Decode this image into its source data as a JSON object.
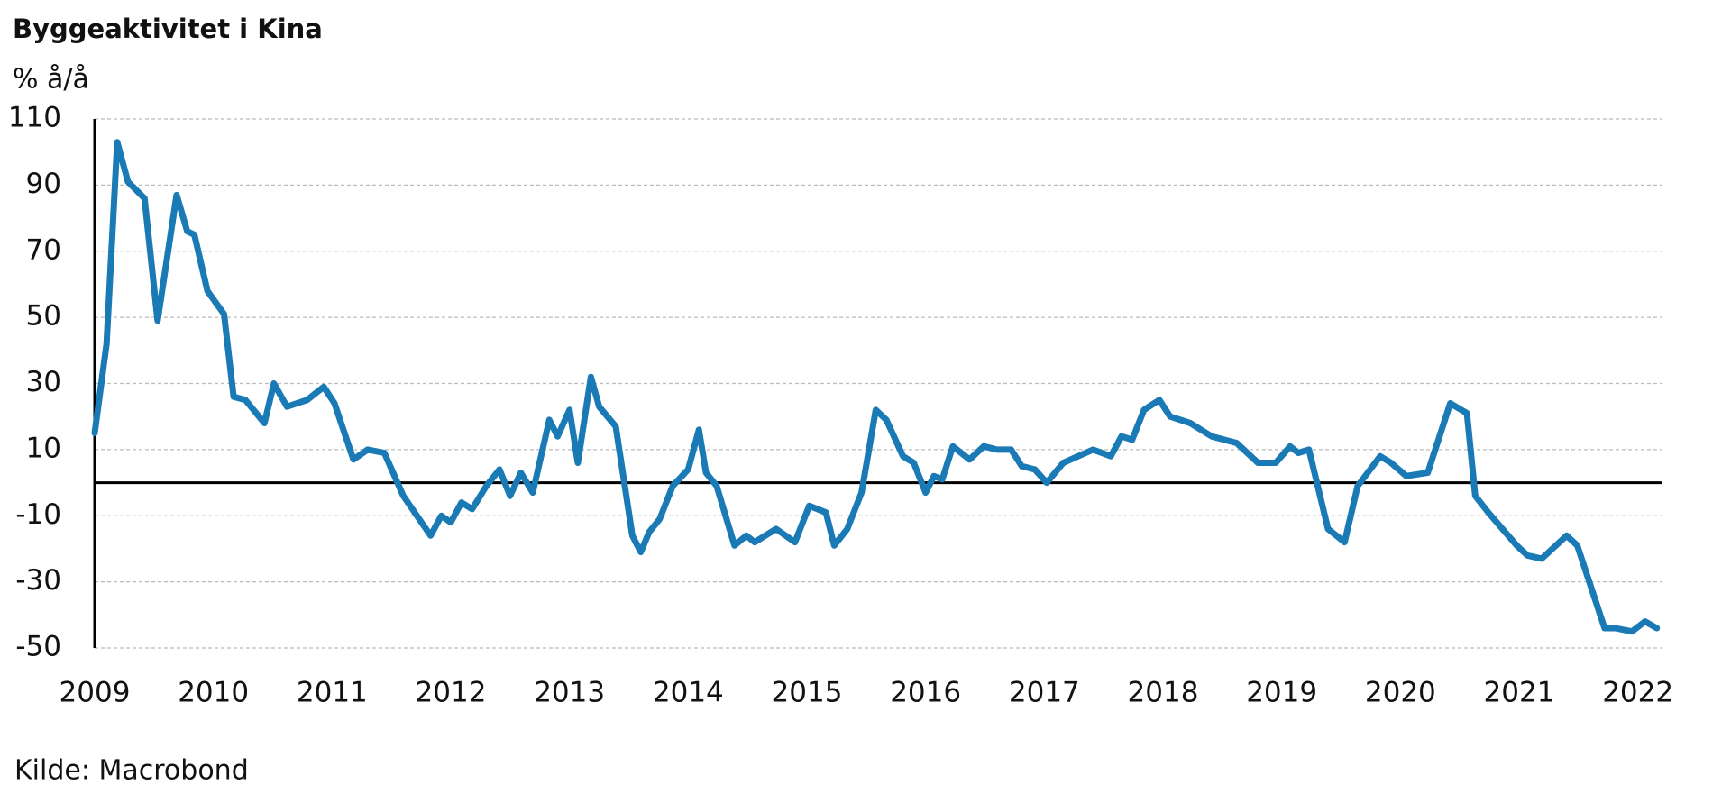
{
  "chart_data": {
    "type": "line",
    "title": "Byggeaktivitet i Kina",
    "y_label": "% å/å",
    "source": "Kilde: Macrobond",
    "color": "#1a7ab5",
    "grid": true,
    "xlim": [
      2009,
      2022.2
    ],
    "xticks": [
      2009,
      2010,
      2011,
      2012,
      2013,
      2014,
      2015,
      2016,
      2017,
      2018,
      2019,
      2020,
      2021,
      2022
    ],
    "ylim": [
      -50,
      110
    ],
    "yticks": [
      -50,
      -30,
      -10,
      10,
      30,
      50,
      70,
      90,
      110
    ],
    "x": [
      2009.0,
      2009.1,
      2009.19,
      2009.28,
      2009.42,
      2009.53,
      2009.69,
      2009.78,
      2009.84,
      2009.95,
      2010.09,
      2010.17,
      2010.27,
      2010.43,
      2010.51,
      2010.62,
      2010.79,
      2010.93,
      2011.02,
      2011.18,
      2011.3,
      2011.44,
      2011.6,
      2011.83,
      2011.92,
      2012.0,
      2012.09,
      2012.18,
      2012.3,
      2012.41,
      2012.5,
      2012.59,
      2012.69,
      2012.83,
      2012.9,
      2013.0,
      2013.07,
      2013.18,
      2013.25,
      2013.39,
      2013.53,
      2013.6,
      2013.67,
      2013.76,
      2013.87,
      2014.0,
      2014.09,
      2014.15,
      2014.24,
      2014.39,
      2014.49,
      2014.56,
      2014.74,
      2014.9,
      2015.02,
      2015.16,
      2015.23,
      2015.34,
      2015.46,
      2015.58,
      2015.67,
      2015.81,
      2015.9,
      2016.0,
      2016.07,
      2016.14,
      2016.23,
      2016.37,
      2016.49,
      2016.6,
      2016.72,
      2016.81,
      2016.92,
      2017.02,
      2017.16,
      2017.41,
      2017.56,
      2017.65,
      2017.74,
      2017.84,
      2017.97,
      2018.06,
      2018.23,
      2018.41,
      2018.62,
      2018.8,
      2018.95,
      2019.07,
      2019.14,
      2019.23,
      2019.39,
      2019.53,
      2019.64,
      2019.83,
      2019.92,
      2020.05,
      2020.23,
      2020.42,
      2020.56,
      2020.63,
      2020.74,
      2020.98,
      2021.07,
      2021.19,
      2021.4,
      2021.49,
      2021.72,
      2021.81,
      2021.95,
      2022.06,
      2022.16
    ],
    "values": [
      15,
      42,
      103,
      91,
      86,
      49,
      87,
      76,
      75,
      58,
      51,
      26,
      25,
      18,
      30,
      23,
      25,
      29,
      24,
      7,
      10,
      9,
      -4,
      -16,
      -10,
      -12,
      -6,
      -8,
      -1,
      4,
      -4,
      3,
      -3,
      19,
      14,
      22,
      6,
      32,
      23,
      17,
      -16,
      -21,
      -15,
      -11,
      -1,
      4,
      16,
      3,
      -1,
      -19,
      -16,
      -18,
      -14,
      -18,
      -7,
      -9,
      -19,
      -14,
      -3,
      22,
      19,
      8,
      6,
      -3,
      2,
      1,
      11,
      7,
      11,
      10,
      10,
      5,
      4,
      0,
      6,
      10,
      8,
      14,
      13,
      22,
      25,
      20,
      18,
      14,
      12,
      6,
      6,
      11,
      9,
      10,
      -14,
      -18,
      -1,
      8,
      6,
      2,
      3,
      24,
      21,
      -4,
      -9,
      -19,
      -22,
      -23,
      -16,
      -19,
      -44,
      -44,
      -45,
      -42,
      -44
    ]
  }
}
